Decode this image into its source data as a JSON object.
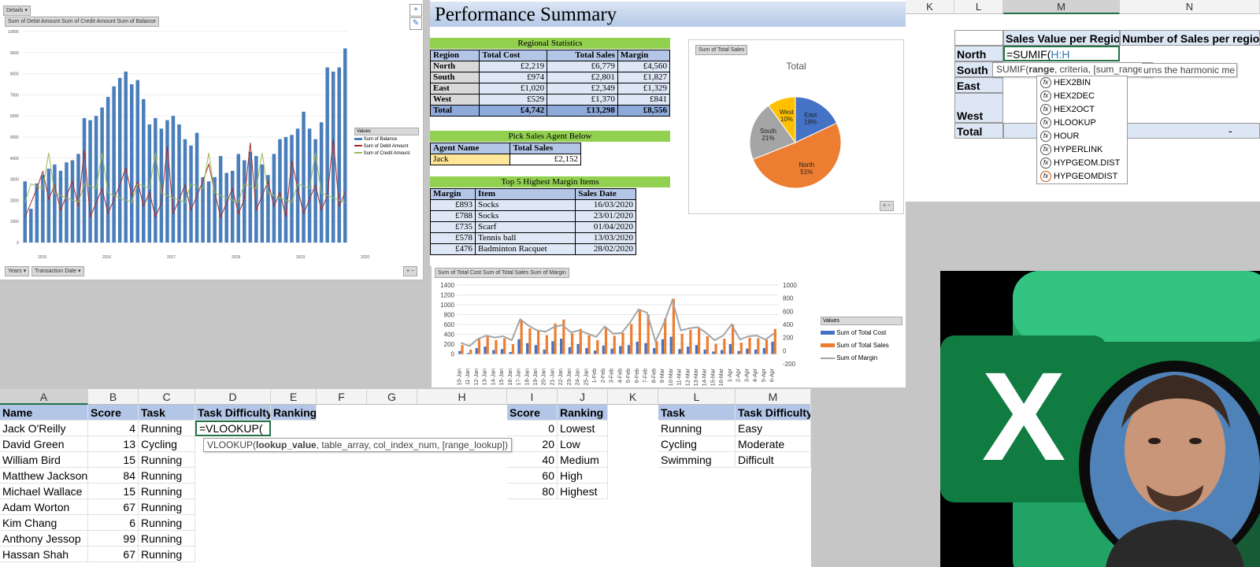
{
  "pivot1": {
    "filter_button": "Details",
    "field_chips": "Sum of Debit Amount  Sum of Credit Amount  Sum of Balance",
    "legend_title": "Values",
    "legend": [
      "Sum of Balance",
      "Sum of Debit Amount",
      "Sum of Credit Amount"
    ],
    "axis_buttons": [
      "Years",
      "Transaction Date"
    ],
    "y_ticks": [
      "10000",
      "9000",
      "8000",
      "7000",
      "6000",
      "5000",
      "4000",
      "3000",
      "2000",
      "1000",
      "0"
    ],
    "year_labels": [
      "2015",
      "2016",
      "2017",
      "2018",
      "2019",
      "2020"
    ],
    "colors": {
      "balance": "#4a7ebb",
      "debit": "#a52a2a",
      "credit": "#9bbb59"
    }
  },
  "performance": {
    "title": "Performance Summary",
    "regional_title": "Regional Statistics",
    "regional_headers": [
      "Region",
      "Total Cost",
      "Total Sales",
      "Margin"
    ],
    "regional_rows": [
      [
        "North",
        "£2,219",
        "£6,779",
        "£4,560"
      ],
      [
        "South",
        "£974",
        "£2,801",
        "£1,827"
      ],
      [
        "East",
        "£1,020",
        "£2,349",
        "£1,329"
      ],
      [
        "West",
        "£529",
        "£1,370",
        "£841"
      ]
    ],
    "regional_total": [
      "Total",
      "£4,742",
      "£13,298",
      "£8,556"
    ],
    "pick_title": "Pick Sales Agent Below",
    "pick_headers": [
      "Agent Name",
      "Total Sales"
    ],
    "pick_row": [
      "Jack",
      "£2,152"
    ],
    "top5_title": "Top 5 Highest Margin Items",
    "top5_headers": [
      "Margin",
      "Item",
      "Sales Date"
    ],
    "top5_rows": [
      [
        "£893",
        "Socks",
        "16/03/2020"
      ],
      [
        "£788",
        "Socks",
        "23/01/2020"
      ],
      [
        "£735",
        "Scarf",
        "01/04/2020"
      ],
      [
        "£578",
        "Tennis ball",
        "13/03/2020"
      ],
      [
        "£476",
        "Badminton Racquet",
        "28/02/2020"
      ]
    ],
    "pie_chip": "Sum of Total Sales",
    "pie_title": "Total",
    "pie_labels": [
      {
        "name": "East",
        "pct": "18%"
      },
      {
        "name": "North",
        "pct": "51%"
      },
      {
        "name": "South",
        "pct": "21%"
      },
      {
        "name": "West",
        "pct": "10%"
      }
    ]
  },
  "chart_data": [
    {
      "type": "pie",
      "title": "Total",
      "categories": [
        "East",
        "North",
        "South",
        "West"
      ],
      "values": [
        18,
        51,
        21,
        10
      ],
      "colors": [
        "#4472c4",
        "#ed7d31",
        "#a5a5a5",
        "#ffc000"
      ]
    },
    {
      "type": "bar",
      "title": "",
      "legend_title": "Values",
      "legend_position": "right",
      "y_left": [
        -200,
        1400
      ],
      "y_right": [
        -200,
        1000
      ],
      "y_left_ticks": [
        "1400",
        "1200",
        "1000",
        "800",
        "600",
        "400",
        "200",
        "0"
      ],
      "y_right_ticks": [
        "1000",
        "800",
        "600",
        "400",
        "200",
        "0",
        "-200"
      ],
      "series": [
        {
          "name": "Sum of Total Cost",
          "values": [
            60,
            20,
            120,
            150,
            80,
            100,
            40,
            300,
            220,
            180,
            90,
            260,
            310,
            140,
            200,
            120,
            70,
            170,
            110,
            160,
            180,
            250,
            220,
            120,
            300,
            350,
            100,
            150,
            180,
            90,
            50,
            80,
            200,
            60,
            110,
            90,
            120,
            250
          ]
        },
        {
          "name": "Sum of Total Sales",
          "values": [
            180,
            90,
            300,
            380,
            280,
            320,
            200,
            680,
            520,
            490,
            380,
            620,
            700,
            420,
            510,
            380,
            280,
            540,
            370,
            430,
            610,
            880,
            800,
            260,
            720,
            1120,
            410,
            490,
            540,
            360,
            210,
            310,
            600,
            230,
            330,
            320,
            290,
            510
          ]
        },
        {
          "name": "Sum of Margin",
          "values": [
            120,
            70,
            180,
            230,
            200,
            220,
            160,
            480,
            380,
            310,
            290,
            360,
            390,
            280,
            310,
            260,
            210,
            370,
            260,
            270,
            430,
            630,
            580,
            140,
            420,
            770,
            310,
            340,
            360,
            270,
            160,
            230,
            400,
            170,
            220,
            230,
            170,
            260
          ]
        }
      ],
      "colors": [
        "#4472c4",
        "#ed7d31",
        "#a5a5a5"
      ],
      "x_labels": [
        "10-Jan",
        "11-Jan",
        "12-Jan",
        "13-Jan",
        "14-Jan",
        "15-Jan",
        "16-Jan",
        "17-Jan",
        "18-Jan",
        "19-Jan",
        "20-Jan",
        "21-Jan",
        "22-Jan",
        "23-Jan",
        "24-Jan",
        "25-Jan",
        "1-Feb",
        "2-Feb",
        "3-Feb",
        "4-Feb",
        "5-Feb",
        "6-Feb",
        "7-Feb",
        "8-Feb",
        "9-Mar",
        "10-Mar",
        "11-Mar",
        "12-Mar",
        "13-Mar",
        "14-Mar",
        "15-Mar",
        "16-Mar",
        "1-Apr",
        "2-Apr",
        "3-Apr",
        "4-Apr",
        "5-Apr",
        "6-Apr"
      ]
    }
  ],
  "combo": {
    "chip": "Sum of Total Cost  Sum of Total Sales  Sum of Margin",
    "legend_title": "Values",
    "legend": [
      "Sum of Total Cost",
      "Sum of Total Sales",
      "Sum of Margin"
    ]
  },
  "rtop": {
    "cols": [
      "K",
      "L",
      "M",
      "N"
    ],
    "header_value": "Sales Value per Region",
    "header_number": "Number of Sales per region",
    "rows": [
      "North",
      "South",
      "East",
      "West",
      "Total"
    ],
    "formula": "=SUMIF(",
    "formula_ref": "H:H",
    "tooltip_fn": "SUMIF(",
    "tooltip_bold": "range",
    "tooltip_rest": ", criteria, [sum_range])",
    "tooltip_tail": "urns the harmonic me",
    "total_dash": "-",
    "fx_items": [
      "HEX2BIN",
      "HEX2DEC",
      "HEX2OCT",
      "HLOOKUP",
      "HOUR",
      "HYPERLINK",
      "HYPGEOM.DIST",
      "HYPGEOMDIST"
    ]
  },
  "bsheet": {
    "cols": [
      "A",
      "B",
      "C",
      "D",
      "E",
      "F",
      "G",
      "H",
      "I",
      "J",
      "K",
      "L",
      "M"
    ],
    "headers": [
      "Name",
      "Score",
      "Task",
      "Task Difficulty",
      "Ranking"
    ],
    "people": [
      [
        "Jack O'Reilly",
        "4",
        "Running"
      ],
      [
        "David Green",
        "13",
        "Cycling"
      ],
      [
        "William Bird",
        "15",
        "Running"
      ],
      [
        "Matthew Jackson",
        "84",
        "Running"
      ],
      [
        "Michael Wallace",
        "15",
        "Running"
      ],
      [
        "Adam Worton",
        "67",
        "Running"
      ],
      [
        "Kim Chang",
        "6",
        "Running"
      ],
      [
        "Anthony Jessop",
        "99",
        "Running"
      ],
      [
        "Hassan Shah",
        "67",
        "Running"
      ]
    ],
    "formula": "=VLOOKUP(",
    "tooltip_fn": "VLOOKUP(",
    "tooltip_bold": "lookup_value",
    "tooltip_rest": ", table_array, col_index_num, [range_lookup])",
    "score_headers": [
      "Score",
      "Ranking"
    ],
    "score_rows": [
      [
        "0",
        "Lowest"
      ],
      [
        "20",
        "Low"
      ],
      [
        "40",
        "Medium"
      ],
      [
        "60",
        "High"
      ],
      [
        "80",
        "Highest"
      ]
    ],
    "task_headers": [
      "Task",
      "Task Difficulty"
    ],
    "task_rows": [
      [
        "Running",
        "Easy"
      ],
      [
        "Cycling",
        "Moderate"
      ],
      [
        "Swimming",
        "Difficult"
      ]
    ]
  },
  "logo": {
    "letter": "X",
    "colors": {
      "dark": "#185c37",
      "mid": "#21a366",
      "light": "#33c481",
      "base": "#107c41"
    }
  }
}
